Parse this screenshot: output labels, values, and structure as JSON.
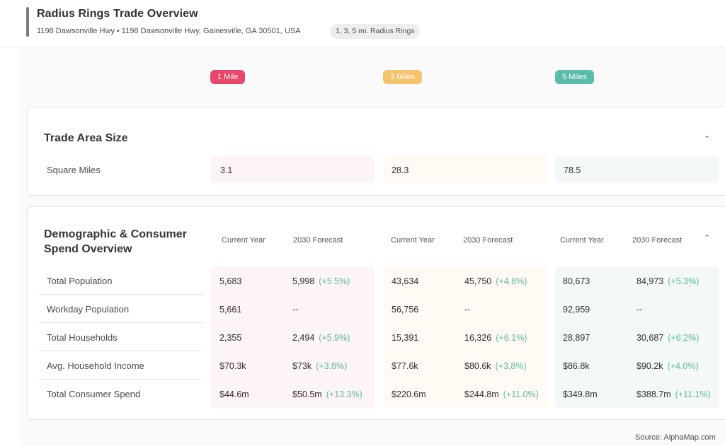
{
  "header": {
    "title": "Radius Rings Trade Overview",
    "address": "1198 Dawsonville Hwy • 1198 Dawsonville Hwy, Gainesville, GA 30501, USA",
    "chip": "1, 3, 5 mi. Radius Rings"
  },
  "rings": [
    {
      "label": "1 Mile",
      "color": "#e8476b"
    },
    {
      "label": "3 Miles",
      "color": "#f5c36b"
    },
    {
      "label": "5 Miles",
      "color": "#5cbcaa"
    }
  ],
  "trade_area": {
    "title": "Trade Area Size",
    "row_label": "Square Miles",
    "values": [
      "3.1",
      "28.3",
      "78.5"
    ]
  },
  "demographics": {
    "title_line1": "Demographic & Consumer",
    "title_line2": "Spend Overview",
    "col_current": "Current Year",
    "col_forecast": "2030 Forecast",
    "rows": [
      {
        "label": "Total Population",
        "cells": [
          {
            "current": "5,683",
            "forecast": "5,998",
            "change": "(+5.5%)"
          },
          {
            "current": "43,634",
            "forecast": "45,750",
            "change": "(+4.8%)"
          },
          {
            "current": "80,673",
            "forecast": "84,973",
            "change": "(+5.3%)"
          }
        ]
      },
      {
        "label": "Workday Population",
        "cells": [
          {
            "current": "5,661",
            "forecast": "--",
            "change": ""
          },
          {
            "current": "56,756",
            "forecast": "--",
            "change": ""
          },
          {
            "current": "92,959",
            "forecast": "--",
            "change": ""
          }
        ]
      },
      {
        "label": "Total Households",
        "cells": [
          {
            "current": "2,355",
            "forecast": "2,494",
            "change": "(+5.9%)"
          },
          {
            "current": "15,391",
            "forecast": "16,326",
            "change": "(+6.1%)"
          },
          {
            "current": "28,897",
            "forecast": "30,687",
            "change": "(+6.2%)"
          }
        ]
      },
      {
        "label": "Avg. Household Income",
        "cells": [
          {
            "current": "$70.3k",
            "forecast": "$73k",
            "change": "(+3.8%)"
          },
          {
            "current": "$77.6k",
            "forecast": "$80.6k",
            "change": "(+3.8%)"
          },
          {
            "current": "$86.8k",
            "forecast": "$90.2k",
            "change": "(+4.0%)"
          }
        ]
      },
      {
        "label": "Total Consumer Spend",
        "cells": [
          {
            "current": "$44.6m",
            "forecast": "$50.5m",
            "change": "(+13.3%)"
          },
          {
            "current": "$220.6m",
            "forecast": "$244.8m",
            "change": "(+11.0%)"
          },
          {
            "current": "$349.8m",
            "forecast": "$388.7m",
            "change": "(+11.1%)"
          }
        ]
      }
    ]
  },
  "source": "Source: AlphaMap.com",
  "icons": {
    "collapse": "chevron-up-icon"
  }
}
